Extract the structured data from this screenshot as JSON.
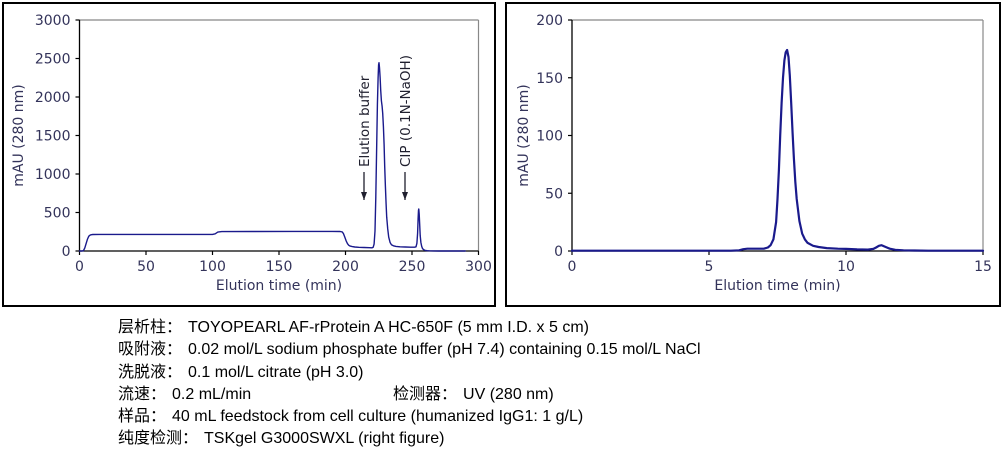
{
  "figure": {
    "caption_lines": [
      {
        "label": "层析柱：",
        "value": "TOYOPEARL AF-rProtein A HC-650F (5 mm I.D. x 5 cm)"
      },
      {
        "label": "吸附液：",
        "value": "0.02 mol/L sodium phosphate buffer (pH 7.4) containing 0.15 mol/L NaCl"
      },
      {
        "label": "洗脱液：",
        "value": "0.1 mol/L citrate (pH 3.0)"
      },
      {
        "label": "流速：",
        "value": "0.2 mL/min",
        "label2": "检测器：",
        "value2": "UV (280 nm)"
      },
      {
        "label": "样品：",
        "value": "40 mL feedstock from cell culture (humanized IgG1: 1 g/L)"
      },
      {
        "label": "纯度检测：",
        "value": "TSKgel G3000SWXL (right figure)"
      }
    ]
  },
  "chart_data": [
    {
      "type": "line",
      "title": "",
      "xlabel": "Elution time (min)",
      "ylabel": "mAU (280 nm)",
      "xlim": [
        0,
        300
      ],
      "ylim": [
        0,
        3000
      ],
      "xticks": [
        0,
        50,
        100,
        150,
        200,
        250,
        300
      ],
      "yticks": [
        0,
        500,
        1000,
        1500,
        2000,
        2500,
        3000
      ],
      "grid": false,
      "legend": "none",
      "line_color": "#1a1a8c",
      "line_width": 1.4,
      "frame_color": "#888888",
      "axis_color": "#000000",
      "annotations": [
        {
          "text": "Elution buffer",
          "arrow_time_min": 214
        },
        {
          "text": "CIP (0.1N-NaOH)",
          "arrow_time_min": 245
        }
      ],
      "series": [
        {
          "points": [
            [
              0,
              0
            ],
            [
              2,
              0
            ],
            [
              3,
              5
            ],
            [
              4,
              40
            ],
            [
              5,
              100
            ],
            [
              6,
              155
            ],
            [
              7,
              192
            ],
            [
              8,
              207
            ],
            [
              9,
              212
            ],
            [
              10,
              214
            ],
            [
              15,
              215
            ],
            [
              30,
              215
            ],
            [
              60,
              215
            ],
            [
              90,
              215
            ],
            [
              100,
              215
            ],
            [
              102,
              224
            ],
            [
              104,
              246
            ],
            [
              107,
              252
            ],
            [
              130,
              253
            ],
            [
              160,
              254
            ],
            [
              190,
              254
            ],
            [
              196,
              253
            ],
            [
              197.5,
              248
            ],
            [
              198.5,
              225
            ],
            [
              199.5,
              180
            ],
            [
              200.5,
              130
            ],
            [
              201.5,
              95
            ],
            [
              202.5,
              74
            ],
            [
              203.5,
              64
            ],
            [
              205,
              57
            ],
            [
              207,
              52
            ],
            [
              210,
              48
            ],
            [
              214,
              45
            ],
            [
              218,
              43
            ],
            [
              220,
              42
            ],
            [
              220.8,
              50
            ],
            [
              221.5,
              90
            ],
            [
              222.2,
              260
            ],
            [
              222.8,
              700
            ],
            [
              223.4,
              1300
            ],
            [
              224,
              1900
            ],
            [
              224.5,
              2250
            ],
            [
              224.9,
              2420
            ],
            [
              225.2,
              2445
            ],
            [
              225.6,
              2380
            ],
            [
              226,
              2260
            ],
            [
              226.5,
              2090
            ],
            [
              227,
              1950
            ],
            [
              227.5,
              1880
            ],
            [
              228,
              1790
            ],
            [
              228.5,
              1620
            ],
            [
              229,
              1380
            ],
            [
              229.5,
              1100
            ],
            [
              230,
              840
            ],
            [
              230.5,
              610
            ],
            [
              231,
              440
            ],
            [
              231.7,
              290
            ],
            [
              232.5,
              180
            ],
            [
              233.5,
              110
            ],
            [
              234.5,
              82
            ],
            [
              236,
              68
            ],
            [
              238,
              60
            ],
            [
              241,
              55
            ],
            [
              245,
              52
            ],
            [
              249,
              50
            ],
            [
              252,
              49
            ],
            [
              253,
              54
            ],
            [
              253.7,
              100
            ],
            [
              254.2,
              230
            ],
            [
              254.6,
              420
            ],
            [
              254.9,
              530
            ],
            [
              255.1,
              545
            ],
            [
              255.4,
              480
            ],
            [
              255.8,
              340
            ],
            [
              256.2,
              200
            ],
            [
              256.7,
              110
            ],
            [
              257.3,
              60
            ],
            [
              258,
              30
            ],
            [
              259,
              14
            ],
            [
              260,
              8
            ],
            [
              261.5,
              4
            ],
            [
              263,
              2
            ],
            [
              266,
              1
            ],
            [
              270,
              0.5
            ],
            [
              280,
              0.4
            ],
            [
              290,
              0.4
            ]
          ]
        }
      ]
    },
    {
      "type": "line",
      "title": "",
      "xlabel": "Elution time (min)",
      "ylabel": "mAU (280 nm)",
      "xlim": [
        0,
        15
      ],
      "ylim": [
        0,
        200
      ],
      "xticks": [
        0,
        5,
        10,
        15
      ],
      "yticks": [
        0,
        50,
        100,
        150,
        200
      ],
      "grid": false,
      "legend": "none",
      "line_color": "#1a1a8c",
      "line_width": 2.2,
      "frame_color": "#888888",
      "axis_color": "#000000",
      "annotations": [],
      "series": [
        {
          "points": [
            [
              0,
              0.3
            ],
            [
              1,
              0.3
            ],
            [
              2,
              0.3
            ],
            [
              3,
              0.3
            ],
            [
              4,
              0.3
            ],
            [
              5,
              0.3
            ],
            [
              5.8,
              0.3
            ],
            [
              6.1,
              0.6
            ],
            [
              6.25,
              1.6
            ],
            [
              6.4,
              2
            ],
            [
              6.8,
              2
            ],
            [
              7.0,
              2
            ],
            [
              7.15,
              3
            ],
            [
              7.25,
              5
            ],
            [
              7.35,
              10
            ],
            [
              7.45,
              25
            ],
            [
              7.5,
              45
            ],
            [
              7.55,
              70
            ],
            [
              7.6,
              100
            ],
            [
              7.65,
              128
            ],
            [
              7.7,
              150
            ],
            [
              7.75,
              165
            ],
            [
              7.8,
              172
            ],
            [
              7.85,
              174
            ],
            [
              7.9,
              168
            ],
            [
              7.95,
              152
            ],
            [
              8.0,
              128
            ],
            [
              8.05,
              102
            ],
            [
              8.1,
              80
            ],
            [
              8.15,
              60
            ],
            [
              8.2,
              45
            ],
            [
              8.3,
              26
            ],
            [
              8.4,
              15
            ],
            [
              8.5,
              10
            ],
            [
              8.6,
              7
            ],
            [
              8.8,
              4.5
            ],
            [
              9.0,
              3.5
            ],
            [
              9.3,
              2.5
            ],
            [
              9.7,
              2
            ],
            [
              10.0,
              1.8
            ],
            [
              10.4,
              1.4
            ],
            [
              10.8,
              1.2
            ],
            [
              11.0,
              1.8
            ],
            [
              11.1,
              3
            ],
            [
              11.2,
              4.5
            ],
            [
              11.3,
              5
            ],
            [
              11.45,
              3.5
            ],
            [
              11.6,
              2
            ],
            [
              11.8,
              1
            ],
            [
              12.1,
              0.6
            ],
            [
              12.5,
              0.4
            ],
            [
              13,
              0.3
            ],
            [
              14,
              0.3
            ],
            [
              15,
              0.3
            ]
          ]
        }
      ]
    }
  ]
}
